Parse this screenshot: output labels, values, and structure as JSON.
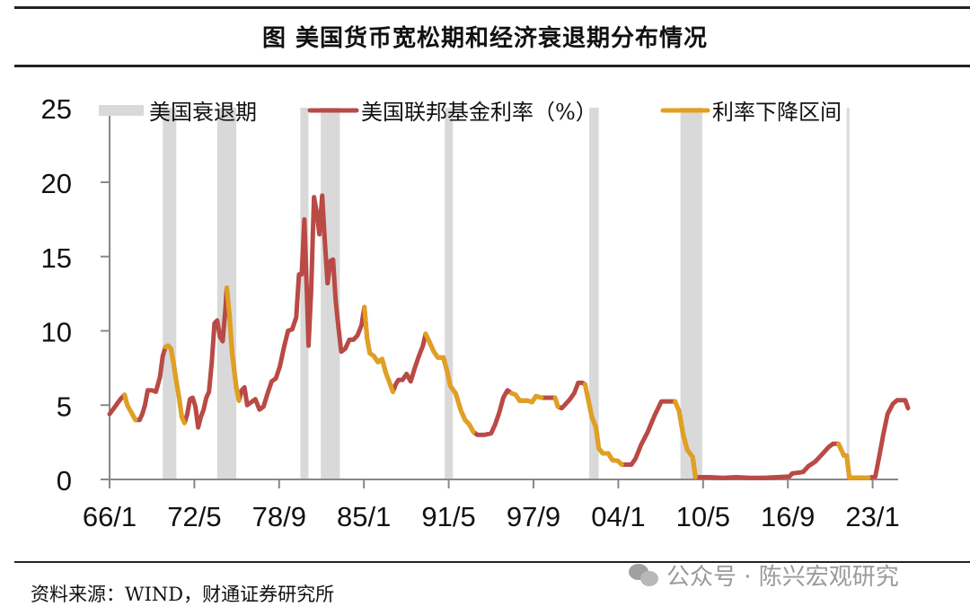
{
  "title": "图  美国货币宽松期和经济衰退期分布情况",
  "source": "资料来源：WIND，财通证券研究所",
  "watermark": "公众号 · 陈兴宏观研究",
  "colors": {
    "rate": "#B94A45",
    "cut": "#E0A020",
    "recession": "#D9D9D9",
    "axis": "#888888"
  },
  "legend": [
    {
      "label": "美国衰退期",
      "type": "bar"
    },
    {
      "label": "美国联邦基金利率（%）",
      "type": "line-red"
    },
    {
      "label": "利率下降区间",
      "type": "line-orange"
    }
  ],
  "chart_data": {
    "type": "line",
    "title": "美国货币宽松期和经济衰退期分布情况",
    "xlabel": "",
    "ylabel": "",
    "ylim": [
      0,
      25
    ],
    "yticks": [
      0,
      5,
      10,
      15,
      20,
      25
    ],
    "xticks": [
      "66/1",
      "72/5",
      "78/9",
      "85/1",
      "91/5",
      "97/9",
      "04/1",
      "10/5",
      "16/9",
      "23/1"
    ],
    "xrange": [
      1966.0,
      2024.5
    ],
    "legend": [
      "美国衰退期",
      "美国联邦基金利率（%）",
      "利率下降区间"
    ],
    "recessions": [
      [
        1969.9,
        1970.9
      ],
      [
        1973.9,
        1975.3
      ],
      [
        1980.0,
        1980.6
      ],
      [
        1981.5,
        1982.9
      ],
      [
        1990.6,
        1991.2
      ],
      [
        2001.2,
        2001.9
      ],
      [
        2007.9,
        2009.5
      ],
      [
        2020.1,
        2020.3
      ]
    ],
    "series": [
      {
        "name": "美国联邦基金利率（%）",
        "points": [
          [
            1966.0,
            4.4
          ],
          [
            1966.4,
            4.9
          ],
          [
            1966.8,
            5.4
          ],
          [
            1967.1,
            5.7
          ],
          [
            1967.3,
            5.0
          ],
          [
            1967.6,
            4.5
          ],
          [
            1967.9,
            4.0
          ],
          [
            1968.2,
            4.0
          ],
          [
            1968.4,
            4.4
          ],
          [
            1968.6,
            5.0
          ],
          [
            1968.8,
            6.0
          ],
          [
            1969.1,
            6.0
          ],
          [
            1969.4,
            5.9
          ],
          [
            1969.7,
            6.9
          ],
          [
            1969.9,
            8.3
          ],
          [
            1970.1,
            8.9
          ],
          [
            1970.3,
            9.0
          ],
          [
            1970.5,
            8.8
          ],
          [
            1970.7,
            7.8
          ],
          [
            1970.9,
            6.6
          ],
          [
            1971.1,
            5.5
          ],
          [
            1971.3,
            4.2
          ],
          [
            1971.5,
            3.8
          ],
          [
            1971.7,
            4.4
          ],
          [
            1971.9,
            5.4
          ],
          [
            1972.1,
            5.5
          ],
          [
            1972.3,
            4.9
          ],
          [
            1972.5,
            3.5
          ],
          [
            1972.7,
            4.2
          ],
          [
            1972.9,
            4.7
          ],
          [
            1973.1,
            5.5
          ],
          [
            1973.3,
            5.9
          ],
          [
            1973.5,
            7.9
          ],
          [
            1973.7,
            10.5
          ],
          [
            1973.9,
            10.7
          ],
          [
            1974.1,
            9.6
          ],
          [
            1974.3,
            9.3
          ],
          [
            1974.5,
            11.4
          ],
          [
            1974.6,
            12.9
          ],
          [
            1974.8,
            11.0
          ],
          [
            1975.0,
            8.5
          ],
          [
            1975.3,
            6.2
          ],
          [
            1975.5,
            5.3
          ],
          [
            1975.7,
            6.0
          ],
          [
            1975.9,
            6.2
          ],
          [
            1976.1,
            5.0
          ],
          [
            1976.4,
            5.2
          ],
          [
            1976.7,
            5.4
          ],
          [
            1977.0,
            4.7
          ],
          [
            1977.3,
            4.9
          ],
          [
            1977.6,
            5.8
          ],
          [
            1977.9,
            6.6
          ],
          [
            1978.2,
            6.8
          ],
          [
            1978.5,
            7.6
          ],
          [
            1978.8,
            8.9
          ],
          [
            1979.1,
            10.0
          ],
          [
            1979.4,
            10.1
          ],
          [
            1979.7,
            10.9
          ],
          [
            1979.9,
            13.8
          ],
          [
            1980.1,
            13.8
          ],
          [
            1980.3,
            17.5
          ],
          [
            1980.5,
            12.0
          ],
          [
            1980.6,
            9.0
          ],
          [
            1980.8,
            12.8
          ],
          [
            1981.0,
            19.0
          ],
          [
            1981.2,
            18.0
          ],
          [
            1981.4,
            16.5
          ],
          [
            1981.6,
            19.1
          ],
          [
            1981.8,
            16.0
          ],
          [
            1982.0,
            13.2
          ],
          [
            1982.2,
            14.7
          ],
          [
            1982.4,
            14.8
          ],
          [
            1982.6,
            12.0
          ],
          [
            1982.8,
            10.2
          ],
          [
            1983.0,
            8.6
          ],
          [
            1983.3,
            8.8
          ],
          [
            1983.6,
            9.4
          ],
          [
            1983.9,
            9.4
          ],
          [
            1984.2,
            9.7
          ],
          [
            1984.5,
            10.4
          ],
          [
            1984.7,
            11.6
          ],
          [
            1984.9,
            9.5
          ],
          [
            1985.1,
            8.5
          ],
          [
            1985.4,
            8.3
          ],
          [
            1985.7,
            7.9
          ],
          [
            1986.0,
            8.1
          ],
          [
            1986.3,
            7.1
          ],
          [
            1986.6,
            6.4
          ],
          [
            1986.8,
            5.9
          ],
          [
            1987.0,
            6.4
          ],
          [
            1987.2,
            6.7
          ],
          [
            1987.5,
            6.7
          ],
          [
            1987.8,
            7.1
          ],
          [
            1988.1,
            6.6
          ],
          [
            1988.4,
            7.5
          ],
          [
            1988.7,
            8.3
          ],
          [
            1989.0,
            9.0
          ],
          [
            1989.2,
            9.8
          ],
          [
            1989.5,
            9.2
          ],
          [
            1989.8,
            8.6
          ],
          [
            1990.1,
            8.2
          ],
          [
            1990.5,
            8.2
          ],
          [
            1990.8,
            7.2
          ],
          [
            1991.0,
            6.3
          ],
          [
            1991.4,
            5.8
          ],
          [
            1991.8,
            4.6
          ],
          [
            1992.1,
            4.0
          ],
          [
            1992.4,
            3.7
          ],
          [
            1992.7,
            3.2
          ],
          [
            1993.0,
            3.0
          ],
          [
            1993.5,
            3.0
          ],
          [
            1994.0,
            3.1
          ],
          [
            1994.3,
            3.7
          ],
          [
            1994.6,
            4.5
          ],
          [
            1994.9,
            5.5
          ],
          [
            1995.2,
            6.0
          ],
          [
            1995.5,
            5.8
          ],
          [
            1995.8,
            5.7
          ],
          [
            1996.1,
            5.3
          ],
          [
            1996.4,
            5.3
          ],
          [
            1996.7,
            5.3
          ],
          [
            1997.0,
            5.2
          ],
          [
            1997.3,
            5.6
          ],
          [
            1997.7,
            5.5
          ],
          [
            1998.1,
            5.5
          ],
          [
            1998.4,
            5.5
          ],
          [
            1998.7,
            5.5
          ],
          [
            1998.9,
            4.9
          ],
          [
            1999.2,
            4.8
          ],
          [
            1999.5,
            5.1
          ],
          [
            1999.8,
            5.4
          ],
          [
            2000.1,
            5.8
          ],
          [
            2000.4,
            6.5
          ],
          [
            2000.7,
            6.5
          ],
          [
            2000.9,
            6.4
          ],
          [
            2001.1,
            5.5
          ],
          [
            2001.4,
            4.2
          ],
          [
            2001.7,
            3.5
          ],
          [
            2001.9,
            2.1
          ],
          [
            2002.2,
            1.75
          ],
          [
            2002.6,
            1.75
          ],
          [
            2002.9,
            1.3
          ],
          [
            2003.3,
            1.25
          ],
          [
            2003.6,
            1.0
          ],
          [
            2003.9,
            1.0
          ],
          [
            2004.3,
            1.0
          ],
          [
            2004.6,
            1.4
          ],
          [
            2005.0,
            2.3
          ],
          [
            2005.5,
            3.2
          ],
          [
            2006.0,
            4.3
          ],
          [
            2006.5,
            5.25
          ],
          [
            2007.0,
            5.25
          ],
          [
            2007.5,
            5.25
          ],
          [
            2007.8,
            4.6
          ],
          [
            2008.1,
            3.0
          ],
          [
            2008.4,
            2.0
          ],
          [
            2008.8,
            1.5
          ],
          [
            2009.0,
            0.15
          ],
          [
            2010.0,
            0.15
          ],
          [
            2011.0,
            0.1
          ],
          [
            2012.0,
            0.15
          ],
          [
            2013.0,
            0.1
          ],
          [
            2014.0,
            0.1
          ],
          [
            2015.0,
            0.15
          ],
          [
            2015.9,
            0.2
          ],
          [
            2016.1,
            0.4
          ],
          [
            2016.9,
            0.5
          ],
          [
            2017.3,
            0.9
          ],
          [
            2017.8,
            1.2
          ],
          [
            2018.3,
            1.7
          ],
          [
            2018.8,
            2.2
          ],
          [
            2019.1,
            2.4
          ],
          [
            2019.5,
            2.4
          ],
          [
            2019.7,
            2.0
          ],
          [
            2019.9,
            1.6
          ],
          [
            2020.1,
            1.6
          ],
          [
            2020.3,
            0.1
          ],
          [
            2021.0,
            0.1
          ],
          [
            2021.7,
            0.1
          ],
          [
            2022.2,
            0.2
          ],
          [
            2022.5,
            1.6
          ],
          [
            2022.8,
            3.1
          ],
          [
            2023.1,
            4.4
          ],
          [
            2023.5,
            5.1
          ],
          [
            2023.8,
            5.33
          ],
          [
            2024.4,
            5.33
          ],
          [
            2024.6,
            4.8
          ]
        ]
      },
      {
        "name": "利率下降区间",
        "segments": [
          [
            1967.1,
            1968.0
          ],
          [
            1970.1,
            1971.5
          ],
          [
            1974.6,
            1975.5
          ],
          [
            1984.7,
            1986.8
          ],
          [
            1989.2,
            1992.7
          ],
          [
            1995.5,
            1998.0
          ],
          [
            1998.7,
            1999.1
          ],
          [
            2000.9,
            2003.6
          ],
          [
            2007.5,
            2009.0
          ],
          [
            2019.5,
            2021.7
          ]
        ]
      }
    ]
  }
}
